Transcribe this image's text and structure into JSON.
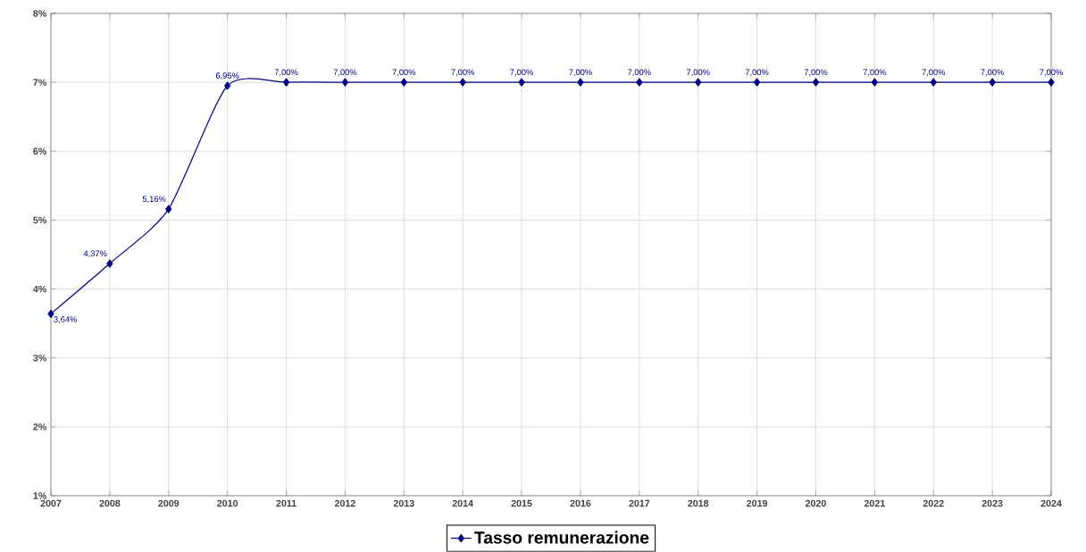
{
  "chart_data": {
    "type": "line",
    "categories": [
      "2007",
      "2008",
      "2009",
      "2010",
      "2011",
      "2012",
      "2013",
      "2014",
      "2015",
      "2016",
      "2017",
      "2018",
      "2019",
      "2020",
      "2021",
      "2022",
      "2023",
      "2024"
    ],
    "series": [
      {
        "name": "Tasso remunerazione",
        "color": "#000080",
        "values": [
          3.64,
          4.37,
          5.16,
          6.95,
          7.0,
          7.0,
          7.0,
          7.0,
          7.0,
          7.0,
          7.0,
          7.0,
          7.0,
          7.0,
          7.0,
          7.0,
          7.0,
          7.0
        ],
        "value_labels": [
          "3,64%",
          "4,37%",
          "5,16%",
          "6,95%",
          "7,00%",
          "7,00%",
          "7,00%",
          "7,00%",
          "7,00%",
          "7,00%",
          "7,00%",
          "7,00%",
          "7,00%",
          "7,00%",
          "7,00%",
          "7,00%",
          "7,00%",
          "7,00%"
        ]
      }
    ],
    "ylim": [
      1,
      8
    ],
    "yticks": [
      {
        "value": 1,
        "label": "1%"
      },
      {
        "value": 2,
        "label": "2%"
      },
      {
        "value": 3,
        "label": "3%"
      },
      {
        "value": 4,
        "label": "4%"
      },
      {
        "value": 5,
        "label": "5%"
      },
      {
        "value": 6,
        "label": "6%"
      },
      {
        "value": 7,
        "label": "7%"
      },
      {
        "value": 8,
        "label": "8%"
      }
    ],
    "grid": true,
    "legend": "bottom",
    "marker": "diamond",
    "line_style": "solid"
  }
}
